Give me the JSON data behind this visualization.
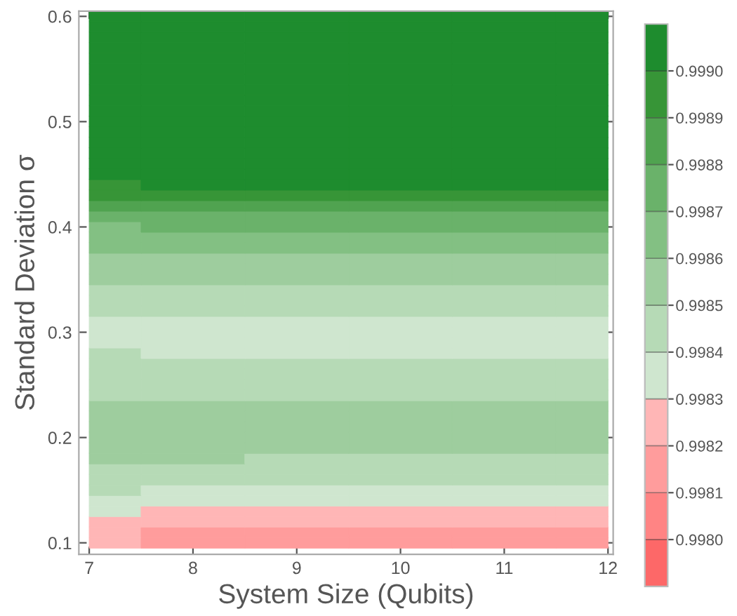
{
  "chart_data": {
    "type": "heatmap",
    "xlabel": "System Size (Qubits)",
    "ylabel": "Standard Deviation σ",
    "x": [
      7,
      8,
      9,
      10,
      11,
      12
    ],
    "y": [
      0.1,
      0.11,
      0.12,
      0.13,
      0.14,
      0.15,
      0.16,
      0.17,
      0.18,
      0.19,
      0.2,
      0.21,
      0.22,
      0.23,
      0.24,
      0.25,
      0.26,
      0.27,
      0.28,
      0.29,
      0.3,
      0.31,
      0.32,
      0.33,
      0.34,
      0.35,
      0.36,
      0.37,
      0.38,
      0.39,
      0.4,
      0.41,
      0.42,
      0.43,
      0.44,
      0.45,
      0.46,
      0.47,
      0.48,
      0.49,
      0.5,
      0.51,
      0.52,
      0.53,
      0.54,
      0.55,
      0.56,
      0.57,
      0.58,
      0.59,
      0.6
    ],
    "cells": [
      [
        0.998202,
        0.99815,
        0.99815,
        0.99815,
        0.99815,
        0.99815
      ],
      [
        0.998243,
        0.998192,
        0.998183,
        0.998183,
        0.998183,
        0.998183
      ],
      [
        0.998285,
        0.998233,
        0.998223,
        0.998223,
        0.998223,
        0.998223
      ],
      [
        0.998325,
        0.998275,
        0.998268,
        0.998268,
        0.998268,
        0.998268
      ],
      [
        0.998362,
        0.998317,
        0.998313,
        0.998313,
        0.998313,
        0.998313
      ],
      [
        0.9984,
        0.998361,
        0.998357,
        0.998357,
        0.998357,
        0.998357
      ],
      [
        0.99844,
        0.998405,
        0.9984,
        0.9984,
        0.9984,
        0.9984
      ],
      [
        0.99848,
        0.998452,
        0.998445,
        0.998445,
        0.998445,
        0.998445
      ],
      [
        0.99851,
        0.9985,
        0.998491,
        0.998491,
        0.998491,
        0.998491
      ],
      [
        0.99853,
        0.998524,
        0.998521,
        0.998521,
        0.998521,
        0.998521
      ],
      [
        0.99855,
        0.998548,
        0.998547,
        0.998547,
        0.998547,
        0.998547
      ],
      [
        0.998551,
        0.998549,
        0.998548,
        0.998548,
        0.998548,
        0.998548
      ],
      [
        0.998532,
        0.998527,
        0.998525,
        0.998525,
        0.998525,
        0.998525
      ],
      [
        0.998513,
        0.998504,
        0.998502,
        0.998502,
        0.998502,
        0.998502
      ],
      [
        0.998493,
        0.998481,
        0.998478,
        0.998478,
        0.998478,
        0.998478
      ],
      [
        0.99847,
        0.998457,
        0.998454,
        0.998454,
        0.998454,
        0.998454
      ],
      [
        0.998447,
        0.998433,
        0.998429,
        0.998429,
        0.998429,
        0.998429
      ],
      [
        0.998423,
        0.99841,
        0.998405,
        0.998405,
        0.998405,
        0.998405
      ],
      [
        0.9984,
        0.998386,
        0.998383,
        0.998383,
        0.998383,
        0.998383
      ],
      [
        0.998371,
        0.998362,
        0.998361,
        0.998361,
        0.998361,
        0.998361
      ],
      [
        0.998359,
        0.998361,
        0.998361,
        0.998361,
        0.998361,
        0.998361
      ],
      [
        0.998391,
        0.998384,
        0.998383,
        0.998383,
        0.998383,
        0.998383
      ],
      [
        0.998422,
        0.998411,
        0.998407,
        0.998407,
        0.998407,
        0.998407
      ],
      [
        0.998453,
        0.998446,
        0.998444,
        0.998444,
        0.998444,
        0.998444
      ],
      [
        0.998484,
        0.998482,
        0.998481,
        0.998481,
        0.998481,
        0.998481
      ],
      [
        0.998517,
        0.998518,
        0.998519,
        0.998519,
        0.998519,
        0.998519
      ],
      [
        0.99855,
        0.998554,
        0.998556,
        0.998556,
        0.998556,
        0.998556
      ],
      [
        0.998583,
        0.998589,
        0.998593,
        0.998593,
        0.998593,
        0.998593
      ],
      [
        0.998619,
        0.998626,
        0.998629,
        0.998629,
        0.998629,
        0.998629
      ],
      [
        0.998658,
        0.998663,
        0.998664,
        0.998664,
        0.998664,
        0.998664
      ],
      [
        0.998696,
        0.9987,
        0.9987,
        0.9987,
        0.9987,
        0.9987
      ],
      [
        0.998764,
        0.998771,
        0.998777,
        0.998777,
        0.998777,
        0.998777
      ],
      [
        0.998838,
        0.998846,
        0.998854,
        0.998854,
        0.998854,
        0.998854
      ],
      [
        0.998914,
        0.998923,
        0.998929,
        0.998929,
        0.998929,
        0.998929
      ],
      [
        0.998986,
        0.999,
        0.999,
        0.999,
        0.999,
        0.999
      ],
      [
        0.999005,
        0.999003,
        0.999003,
        0.999003,
        0.999003,
        0.999003
      ],
      [
        0.999006,
        0.999006,
        0.999006,
        0.999006,
        0.999006,
        0.999006
      ],
      [
        0.999009,
        0.999009,
        0.999009,
        0.999009,
        0.999009,
        0.999009
      ],
      [
        0.999012,
        0.999012,
        0.999012,
        0.999012,
        0.999012,
        0.999012
      ],
      [
        0.999016,
        0.999016,
        0.999016,
        0.999016,
        0.999016,
        0.999016
      ],
      [
        0.999019,
        0.999019,
        0.999019,
        0.999019,
        0.999019,
        0.999019
      ],
      [
        0.999022,
        0.999022,
        0.999022,
        0.999022,
        0.999022,
        0.999022
      ],
      [
        0.999025,
        0.999025,
        0.999025,
        0.999025,
        0.999025,
        0.999025
      ],
      [
        0.999028,
        0.999028,
        0.999028,
        0.999028,
        0.999028,
        0.999028
      ],
      [
        0.999031,
        0.999031,
        0.999031,
        0.999031,
        0.999031,
        0.999031
      ],
      [
        0.999034,
        0.999034,
        0.999034,
        0.999034,
        0.999034,
        0.999034
      ],
      [
        0.999037,
        0.999037,
        0.999037,
        0.999037,
        0.999037,
        0.999037
      ],
      [
        0.999041,
        0.999041,
        0.999041,
        0.999041,
        0.999041,
        0.999041
      ],
      [
        0.999044,
        0.999044,
        0.999044,
        0.999044,
        0.999044,
        0.999044
      ],
      [
        0.999047,
        0.999047,
        0.999047,
        0.999047,
        0.999047,
        0.999047
      ],
      [
        0.99905,
        0.99905,
        0.99905,
        0.99905,
        0.99905,
        0.99905
      ]
    ],
    "colors": [
      "#fd6868",
      "#ff8484",
      "#ff9c9c",
      "#ffb6b6",
      "#cfe6cf",
      "#b6dab6",
      "#9ecd9e",
      "#83c083",
      "#6ab26a",
      "#50a350",
      "#379537",
      "#1e8c2e"
    ],
    "clim": [
      0.9979,
      0.9991
    ],
    "cticks": [
      {
        "value": 0.998,
        "label": "0.9980"
      },
      0.9981,
      0.9982,
      0.9983,
      0.9984,
      0.9985,
      0.9986,
      0.9987,
      0.9988,
      0.9989,
      {
        "value": 0.999,
        "label": "0.9990"
      }
    ],
    "xlim": [
      6.9,
      12.05
    ],
    "ylim": [
      0.089,
      0.605
    ],
    "xticks": [
      7,
      8,
      9,
      10,
      11,
      12
    ],
    "yticks": [
      0.1,
      0.2,
      0.3,
      0.4,
      0.5,
      0.6
    ]
  }
}
